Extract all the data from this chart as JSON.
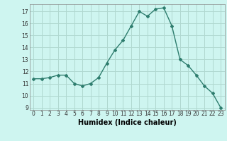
{
  "x": [
    0,
    1,
    2,
    3,
    4,
    5,
    6,
    7,
    8,
    9,
    10,
    11,
    12,
    13,
    14,
    15,
    16,
    17,
    18,
    19,
    20,
    21,
    22,
    23
  ],
  "y": [
    11.4,
    11.4,
    11.5,
    11.7,
    11.7,
    11.0,
    10.8,
    11.0,
    11.5,
    12.7,
    13.8,
    14.6,
    15.8,
    17.0,
    16.6,
    17.2,
    17.3,
    15.8,
    13.0,
    12.5,
    11.7,
    10.8,
    10.2,
    9.0
  ],
  "line_color": "#2e7d6e",
  "marker": "D",
  "marker_size": 2.0,
  "bg_color": "#cef5f0",
  "grid_color": "#b0d8d0",
  "xlabel": "Humidex (Indice chaleur)",
  "xlim": [
    -0.5,
    23.5
  ],
  "ylim": [
    8.8,
    17.6
  ],
  "yticks": [
    9,
    10,
    11,
    12,
    13,
    14,
    15,
    16,
    17
  ],
  "xticks": [
    0,
    1,
    2,
    3,
    4,
    5,
    6,
    7,
    8,
    9,
    10,
    11,
    12,
    13,
    14,
    15,
    16,
    17,
    18,
    19,
    20,
    21,
    22,
    23
  ],
  "tick_fontsize": 5.5,
  "xlabel_fontsize": 7.0,
  "line_width": 1.0
}
